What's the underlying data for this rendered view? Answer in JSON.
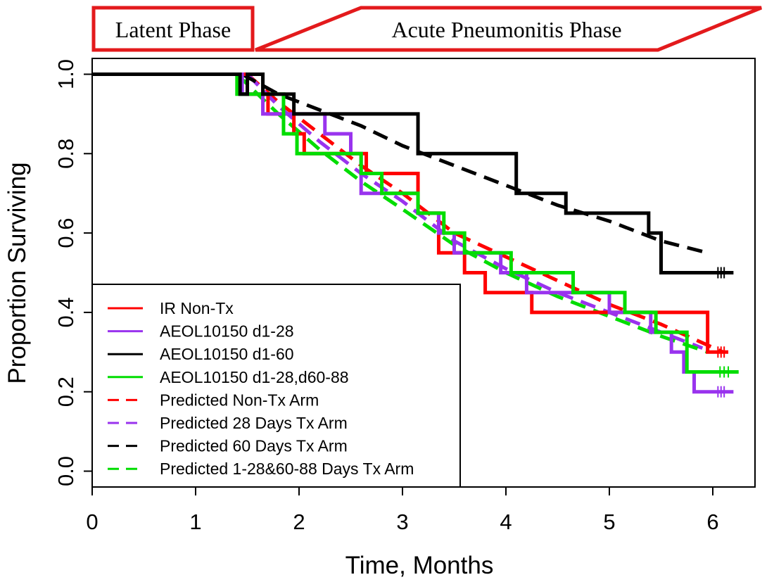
{
  "chart_data": {
    "type": "line",
    "title": "",
    "xlabel": "Time, Months",
    "ylabel": "Proportion Surviving",
    "xlim": [
      0,
      6.3
    ],
    "ylim": [
      -0.04,
      1.04
    ],
    "x_ticks": [
      0,
      1,
      2,
      3,
      4,
      5,
      6
    ],
    "x_tick_labels": [
      "0",
      "1",
      "2",
      "3",
      "4",
      "5",
      "6"
    ],
    "y_ticks": [
      0.0,
      0.2,
      0.4,
      0.6,
      0.8,
      1.0
    ],
    "y_tick_labels": [
      "0.0",
      "0.2",
      "0.4",
      "0.6",
      "0.8",
      "1.0"
    ],
    "phases": [
      {
        "label": "Latent Phase",
        "x_from": 0.0,
        "x_to": 1.55,
        "color": "#e31a1c"
      },
      {
        "label": "Acute Pneumonitis Phase",
        "x_from": 1.6,
        "x_to": 6.3,
        "color": "#e31a1c"
      }
    ],
    "legend_position": "bottom-left",
    "series": [
      {
        "name": "IR Non-Tx",
        "style": "step",
        "color": "#ff0000",
        "x": [
          0,
          1.5,
          1.7,
          1.95,
          2.05,
          2.35,
          2.65,
          2.8,
          3.15,
          3.35,
          3.6,
          3.8,
          4.25,
          5.4,
          5.95,
          6.15
        ],
        "y": [
          1.0,
          0.95,
          0.9,
          0.85,
          0.8,
          0.8,
          0.75,
          0.75,
          0.65,
          0.55,
          0.5,
          0.45,
          0.4,
          0.4,
          0.3,
          0.3
        ],
        "censor_x": [
          6.05,
          6.08,
          6.11
        ]
      },
      {
        "name": "AEOL10150 d1-28",
        "style": "step",
        "color": "#9933ee",
        "x": [
          0,
          1.45,
          1.65,
          1.95,
          2.25,
          2.5,
          2.6,
          2.75,
          3.15,
          3.35,
          3.5,
          3.7,
          3.95,
          4.2,
          5.0,
          5.4,
          5.6,
          5.72,
          5.82,
          6.2
        ],
        "y": [
          1.0,
          0.95,
          0.9,
          0.9,
          0.85,
          0.8,
          0.7,
          0.7,
          0.65,
          0.6,
          0.55,
          0.55,
          0.5,
          0.45,
          0.4,
          0.35,
          0.3,
          0.25,
          0.2,
          0.2
        ],
        "censor_x": [
          6.05,
          6.08,
          6.11
        ]
      },
      {
        "name": "AEOL10150 d1-60",
        "style": "step",
        "color": "#000000",
        "x": [
          0,
          1.43,
          1.5,
          1.65,
          1.95,
          2.0,
          2.35,
          3.15,
          3.2,
          4.1,
          4.58,
          5.38,
          5.45,
          5.5,
          6.2
        ],
        "y": [
          1.0,
          0.95,
          1.0,
          0.95,
          0.9,
          0.9,
          0.9,
          0.8,
          0.8,
          0.7,
          0.65,
          0.6,
          0.6,
          0.5,
          0.5
        ],
        "censor_x": [
          6.05,
          6.08,
          6.11
        ]
      },
      {
        "name": "AEOL10150 d1-28,d60-88",
        "style": "step",
        "color": "#00dd00",
        "x": [
          0,
          1.4,
          1.85,
          1.98,
          2.25,
          2.6,
          2.8,
          3.15,
          3.4,
          3.6,
          4.05,
          4.5,
          4.65,
          5.15,
          5.35,
          5.45,
          5.75,
          6.25
        ],
        "y": [
          1.0,
          0.95,
          0.85,
          0.8,
          0.8,
          0.75,
          0.7,
          0.65,
          0.6,
          0.55,
          0.5,
          0.5,
          0.45,
          0.4,
          0.4,
          0.35,
          0.25,
          0.25
        ],
        "censor_x": [
          6.07,
          6.11,
          6.15
        ]
      },
      {
        "name": "Predicted Non-Tx Arm",
        "style": "dashed",
        "color": "#ff0000",
        "x": [
          1.5,
          1.8,
          2.2,
          2.6,
          3.0,
          3.5,
          4.0,
          4.5,
          5.0,
          5.5,
          6.1
        ],
        "y": [
          1.0,
          0.93,
          0.85,
          0.77,
          0.7,
          0.6,
          0.54,
          0.48,
          0.42,
          0.37,
          0.3
        ]
      },
      {
        "name": "Predicted 28 Days Tx Arm",
        "style": "dashed",
        "color": "#9933ee",
        "x": [
          1.5,
          1.8,
          2.2,
          2.6,
          3.0,
          3.5,
          4.0,
          4.5,
          5.0,
          5.5,
          5.9
        ],
        "y": [
          1.0,
          0.92,
          0.83,
          0.75,
          0.68,
          0.58,
          0.51,
          0.45,
          0.4,
          0.35,
          0.31
        ]
      },
      {
        "name": "Predicted 60 Days Tx Arm",
        "style": "dashed",
        "color": "#000000",
        "x": [
          1.45,
          1.8,
          2.2,
          2.6,
          3.0,
          3.5,
          4.0,
          4.5,
          5.0,
          5.5,
          5.95
        ],
        "y": [
          1.0,
          0.95,
          0.91,
          0.87,
          0.82,
          0.77,
          0.72,
          0.67,
          0.63,
          0.58,
          0.55
        ]
      },
      {
        "name": "Predicted 1-28&60-88 Days Tx Arm",
        "style": "dashed",
        "color": "#00dd00",
        "x": [
          1.4,
          1.8,
          2.2,
          2.6,
          3.0,
          3.5,
          4.0,
          4.5,
          5.0,
          5.5,
          5.95
        ],
        "y": [
          1.0,
          0.9,
          0.81,
          0.73,
          0.66,
          0.57,
          0.5,
          0.44,
          0.39,
          0.34,
          0.3
        ]
      }
    ]
  }
}
